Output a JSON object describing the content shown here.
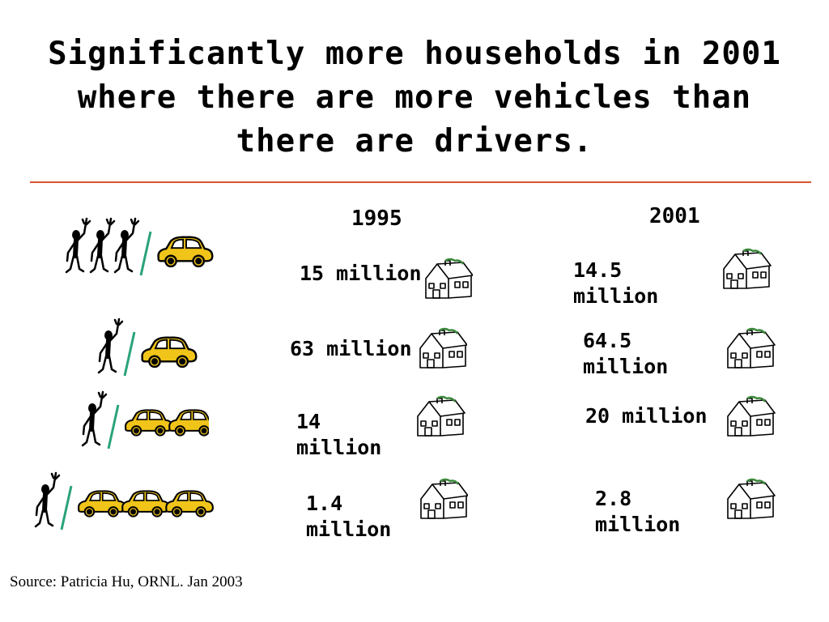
{
  "title": "Significantly more households in 2001 where there are more vehicles than there are drivers.",
  "source": "Source:  Patricia Hu, ORNL. Jan 2003",
  "colors": {
    "rule": "#d9542e",
    "car": "#f0c419",
    "slash": "#2aa37a",
    "house_roof": "#3c8a3c"
  },
  "chart_data": {
    "type": "table",
    "columns": [
      "1995",
      "2001"
    ],
    "rows": [
      {
        "drivers": 3,
        "vehicles": 1,
        "icon": "three-drivers-one-car",
        "values": [
          "15 million",
          "14.5 million"
        ]
      },
      {
        "drivers": 1,
        "vehicles": 1,
        "icon": "one-driver-one-car",
        "values": [
          "63 million",
          "64.5 million"
        ]
      },
      {
        "drivers": 1,
        "vehicles": 2,
        "icon": "one-driver-two-cars",
        "values": [
          "14 million",
          "20 million"
        ]
      },
      {
        "drivers": 1,
        "vehicles": 3,
        "icon": "one-driver-three-cars",
        "values": [
          "1.4 million",
          "2.8 million"
        ]
      }
    ]
  }
}
